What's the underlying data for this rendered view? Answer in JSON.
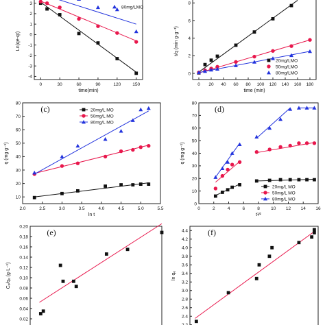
{
  "chart_data": [
    {
      "type": "scatter",
      "panel_label": "",
      "xlabel": "time(min)",
      "ylabel": "Ln(qe-qt)",
      "xlim": [
        -10,
        160
      ],
      "ylim": [
        -4.3,
        3.7
      ],
      "xticks": [
        "0",
        "30",
        "60",
        "90",
        "120",
        "150"
      ],
      "yticks": [
        "-4",
        "-3",
        "-2",
        "-1",
        "0",
        "1",
        "2",
        "3"
      ],
      "legend": [
        "80mg/LMO"
      ],
      "colors": {
        "s20": "#111111",
        "s50": "#e8174c",
        "s80": "#2233dd",
        "fit": "#555555"
      },
      "series": [
        {
          "name": "",
          "color": "#111111",
          "marker": "square",
          "x": [
            0,
            10,
            30,
            60,
            90,
            120,
            150
          ],
          "y": [
            3.0,
            2.45,
            1.9,
            0.1,
            -0.8,
            -2.3,
            -3.7
          ],
          "fit": [
            [
              0,
              3.1
            ],
            [
              150,
              -3.6
            ]
          ]
        },
        {
          "name": "",
          "color": "#e8174c",
          "marker": "circle",
          "x": [
            0,
            10,
            30,
            60,
            90,
            120,
            150
          ],
          "y": [
            3.15,
            3.0,
            2.6,
            1.5,
            0.8,
            0.15,
            -0.7
          ],
          "fit": [
            [
              0,
              3.2
            ],
            [
              150,
              -0.6
            ]
          ]
        },
        {
          "name": "80mg/LMO",
          "color": "#2233dd",
          "marker": "triangle",
          "x": [
            30,
            60,
            90,
            120,
            150
          ],
          "y": [
            3.6,
            3.4,
            2.6,
            2.4,
            0.3
          ],
          "fit": [
            [
              20,
              3.5
            ],
            [
              150,
              1.0
            ]
          ]
        }
      ]
    },
    {
      "type": "scatter",
      "panel_label": "",
      "xlabel": "time (min)",
      "ylabel": "t/q (min g·g⁻¹)",
      "xlim": [
        -10,
        190
      ],
      "ylim": [
        -0.7,
        8.8
      ],
      "xticks": [
        "0",
        "20",
        "40",
        "60",
        "80",
        "100",
        "120",
        "140",
        "160",
        "180"
      ],
      "yticks": [
        "0",
        "2",
        "4",
        "6",
        "8"
      ],
      "legend": [
        "20mg/LMO",
        "50mg/LMO",
        "80mg/LMO"
      ],
      "series": [
        {
          "name": "20mg/LMO",
          "color": "#111111",
          "marker": "square",
          "x": [
            0,
            10,
            20,
            30,
            60,
            90,
            120,
            150
          ],
          "y": [
            0.05,
            1.0,
            1.5,
            1.95,
            3.2,
            4.7,
            6.2,
            7.7
          ],
          "fit": [
            [
              0,
              0.15
            ],
            [
              160,
              8.3
            ]
          ]
        },
        {
          "name": "50mg/LMO",
          "color": "#e8174c",
          "marker": "circle",
          "x": [
            0,
            10,
            20,
            30,
            60,
            90,
            120,
            150,
            180
          ],
          "y": [
            0.1,
            0.35,
            0.55,
            0.75,
            1.3,
            1.9,
            2.55,
            3.1,
            3.8
          ],
          "fit": [
            [
              0,
              0.05
            ],
            [
              180,
              3.8
            ]
          ]
        },
        {
          "name": "80mg/LMO",
          "color": "#2233dd",
          "marker": "triangle",
          "x": [
            0,
            10,
            20,
            30,
            60,
            90,
            120,
            150,
            180
          ],
          "y": [
            0.1,
            0.25,
            0.4,
            0.5,
            0.9,
            1.3,
            1.7,
            2.05,
            2.5
          ],
          "fit": [
            [
              0,
              0.1
            ],
            [
              180,
              2.5
            ]
          ]
        }
      ]
    },
    {
      "type": "scatter",
      "panel_label": "(c)",
      "xlabel": "ln t",
      "ylabel": "q (mg g⁻¹)",
      "xlim": [
        2.0,
        5.5
      ],
      "ylim": [
        5,
        80
      ],
      "xticks": [
        "2.0",
        "2.5",
        "3.0",
        "3.5",
        "4.0",
        "4.5",
        "5.0",
        "5.5"
      ],
      "yticks": [
        "10",
        "20",
        "30",
        "40",
        "50",
        "60",
        "70",
        "80"
      ],
      "legend": [
        "20mg/L MO",
        "50mg/L MO",
        "80mg/L MO"
      ],
      "series": [
        {
          "name": "20mg/L MO",
          "color": "#111111",
          "marker": "square",
          "x": [
            2.3,
            3.0,
            3.4,
            4.1,
            4.5,
            4.8,
            5.0,
            5.2
          ],
          "y": [
            9.5,
            12.5,
            14.5,
            18,
            19,
            19,
            19.5,
            19.5
          ],
          "fit": [
            [
              2.3,
              10.0
            ],
            [
              5.2,
              20.5
            ]
          ]
        },
        {
          "name": "50mg/L MO",
          "color": "#e8174c",
          "marker": "circle",
          "x": [
            2.3,
            3.0,
            3.4,
            4.1,
            4.5,
            4.8,
            5.0,
            5.2
          ],
          "y": [
            27,
            33,
            35,
            40,
            44,
            45,
            47,
            48
          ],
          "fit": [
            [
              2.3,
              27.5
            ],
            [
              5.2,
              48.5
            ]
          ]
        },
        {
          "name": "80mg/L MO",
          "color": "#2233dd",
          "marker": "triangle",
          "x": [
            2.3,
            3.0,
            3.4,
            4.1,
            4.5,
            4.8,
            5.0,
            5.2
          ],
          "y": [
            28,
            40,
            48,
            53,
            59,
            67,
            75,
            76
          ],
          "fit": [
            [
              2.3,
              27
            ],
            [
              5.2,
              74
            ]
          ]
        }
      ]
    },
    {
      "type": "scatter",
      "panel_label": "(d)",
      "xlabel": "t¹⁄²",
      "ylabel": "q (mg g⁻¹)",
      "xlim": [
        0,
        16
      ],
      "ylim": [
        0,
        80
      ],
      "xticks": [
        "0",
        "2",
        "4",
        "6",
        "8",
        "10",
        "12",
        "14",
        "16"
      ],
      "yticks": [
        "0",
        "10",
        "20",
        "30",
        "40",
        "50",
        "60",
        "70",
        "80"
      ],
      "legend": [
        "20mg/L MO",
        "50mg/L MO",
        "80mg/L MO"
      ],
      "series": [
        {
          "name": "20mg/L MO",
          "color": "#111111",
          "marker": "square",
          "x": [
            2.24,
            3.16,
            3.87,
            4.47,
            5.48,
            7.75,
            9.49,
            10.95,
            12.25,
            13.42,
            14.49,
            15.49
          ],
          "y": [
            6,
            9,
            11,
            13,
            15,
            18,
            18.5,
            19,
            19,
            19,
            19,
            19
          ],
          "fits": [
            [
              [
                2.24,
                6.5
              ],
              [
                5.48,
                15.5
              ]
            ],
            [
              [
                7.75,
                18
              ],
              [
                15.49,
                19.3
              ]
            ]
          ]
        },
        {
          "name": "50mg/L MO",
          "color": "#e8174c",
          "marker": "circle",
          "x": [
            2.24,
            3.16,
            3.87,
            4.47,
            5.48,
            7.75,
            9.49,
            10.95,
            12.25,
            13.42,
            14.49,
            15.49
          ],
          "y": [
            12,
            22,
            27,
            31,
            33,
            41,
            43,
            45,
            46,
            48,
            48,
            48
          ],
          "fits": [
            [
              [
                2.24,
                17
              ],
              [
                5.48,
                33.5
              ]
            ],
            [
              [
                7.75,
                40.5
              ],
              [
                15.49,
                48.5
              ]
            ]
          ]
        },
        {
          "name": "80mg/L MO",
          "color": "#2233dd",
          "marker": "triangle",
          "x": [
            2.24,
            3.16,
            3.87,
            4.47,
            5.48,
            7.75,
            9.49,
            10.95,
            12.25,
            13.42,
            14.49,
            15.49
          ],
          "y": [
            21,
            28,
            33,
            40,
            47,
            53,
            60,
            67,
            75,
            76,
            76,
            76
          ],
          "fits": [
            [
              [
                2.24,
                21
              ],
              [
                5.48,
                48
              ]
            ],
            [
              [
                7.75,
                52
              ],
              [
                12.25,
                76
              ]
            ],
            [
              [
                13.42,
                76
              ],
              [
                15.49,
                76
              ]
            ]
          ]
        }
      ]
    },
    {
      "type": "scatter",
      "panel_label": "(e)",
      "xlabel": "",
      "ylabel": "Cₑ/qₑ (g·L⁻¹)",
      "xlim": [
        0,
        10
      ],
      "ylim": [
        0,
        0.2
      ],
      "xticks": [],
      "yticks": [
        "0.02",
        "0.04",
        "0.06",
        "0.08",
        "0.10",
        "0.12",
        "0.14",
        "0.16",
        "0.18",
        "0.20"
      ],
      "series": [
        {
          "name": "",
          "color": "#111111",
          "marker": "square",
          "x": [
            0.8,
            1.0,
            2.3,
            2.5,
            3.3,
            3.5,
            5.8,
            7.4,
            10.0
          ],
          "y": [
            0.03,
            0.035,
            0.124,
            0.093,
            0.093,
            0.083,
            0.146,
            0.155,
            0.188
          ],
          "fit": [
            [
              0.7,
              0.052
            ],
            [
              10.0,
              0.205
            ]
          ],
          "fit_color": "#e8174c"
        }
      ]
    },
    {
      "type": "scatter",
      "panel_label": "(f)",
      "xlabel": "",
      "ylabel": "ln qₑ",
      "xlim": [
        0,
        10
      ],
      "ylim": [
        2.1,
        4.5
      ],
      "xticks": [],
      "yticks": [
        "2.2",
        "2.4",
        "2.6",
        "2.8",
        "3.0",
        "3.2",
        "3.4",
        "3.6",
        "3.8",
        "4.0",
        "4.2",
        "4.4"
      ],
      "series": [
        {
          "name": "",
          "color": "#111111",
          "marker": "square",
          "x": [
            0.5,
            3.0,
            5.2,
            5.4,
            6.2,
            6.4,
            8.5,
            9.5,
            9.7,
            9.7
          ],
          "y": [
            2.28,
            2.95,
            3.28,
            3.6,
            3.8,
            4.0,
            4.12,
            4.25,
            4.35,
            4.42
          ],
          "fit": [
            [
              0.4,
              2.35
            ],
            [
              9.8,
              4.4
            ]
          ],
          "fit_color": "#e8174c"
        }
      ]
    }
  ]
}
